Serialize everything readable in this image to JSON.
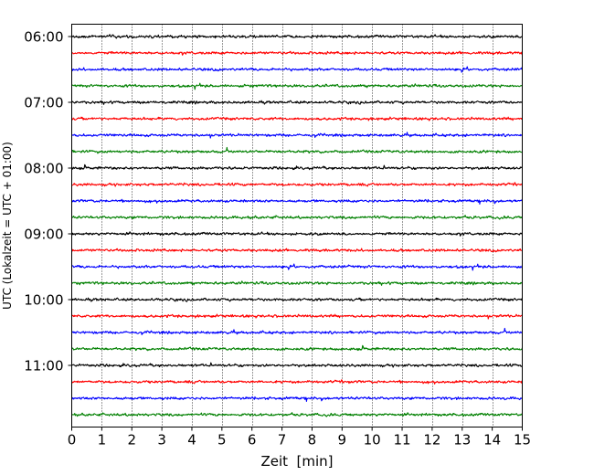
{
  "chart_data": {
    "type": "line",
    "title": "",
    "xlabel": "Zeit  [min]",
    "ylabel": "UTC (Lokalzeit = UTC + 01:00)",
    "xlim": [
      0,
      15
    ],
    "x_ticks": [
      0,
      1,
      2,
      3,
      4,
      5,
      6,
      7,
      8,
      9,
      10,
      11,
      12,
      13,
      14,
      15
    ],
    "x_tick_labels": [
      "0",
      "1",
      "2",
      "3",
      "4",
      "5",
      "6",
      "7",
      "8",
      "9",
      "10",
      "11",
      "12",
      "13",
      "14",
      "15"
    ],
    "y_tick_labels": [
      "06:00",
      "07:00",
      "08:00",
      "09:00",
      "10:00",
      "11:00"
    ],
    "vertical_grid": true,
    "grid_style": "dotted",
    "trace_interval_min": 15,
    "trace_colors": [
      "#000000",
      "#ff0000",
      "#0000ff",
      "#008000"
    ],
    "traces": [
      {
        "start": "06:00",
        "color": "#000000"
      },
      {
        "start": "06:15",
        "color": "#ff0000"
      },
      {
        "start": "06:30",
        "color": "#0000ff"
      },
      {
        "start": "06:45",
        "color": "#008000"
      },
      {
        "start": "07:00",
        "color": "#000000"
      },
      {
        "start": "07:15",
        "color": "#ff0000"
      },
      {
        "start": "07:30",
        "color": "#0000ff"
      },
      {
        "start": "07:45",
        "color": "#008000"
      },
      {
        "start": "08:00",
        "color": "#000000"
      },
      {
        "start": "08:15",
        "color": "#ff0000"
      },
      {
        "start": "08:30",
        "color": "#0000ff"
      },
      {
        "start": "08:45",
        "color": "#008000"
      },
      {
        "start": "09:00",
        "color": "#000000"
      },
      {
        "start": "09:15",
        "color": "#ff0000"
      },
      {
        "start": "09:30",
        "color": "#0000ff"
      },
      {
        "start": "09:45",
        "color": "#008000"
      },
      {
        "start": "10:00",
        "color": "#000000"
      },
      {
        "start": "10:15",
        "color": "#ff0000"
      },
      {
        "start": "10:30",
        "color": "#0000ff"
      },
      {
        "start": "10:45",
        "color": "#008000"
      },
      {
        "start": "11:00",
        "color": "#000000"
      },
      {
        "start": "11:15",
        "color": "#ff0000"
      },
      {
        "start": "11:30",
        "color": "#0000ff"
      },
      {
        "start": "11:45",
        "color": "#008000"
      }
    ]
  }
}
